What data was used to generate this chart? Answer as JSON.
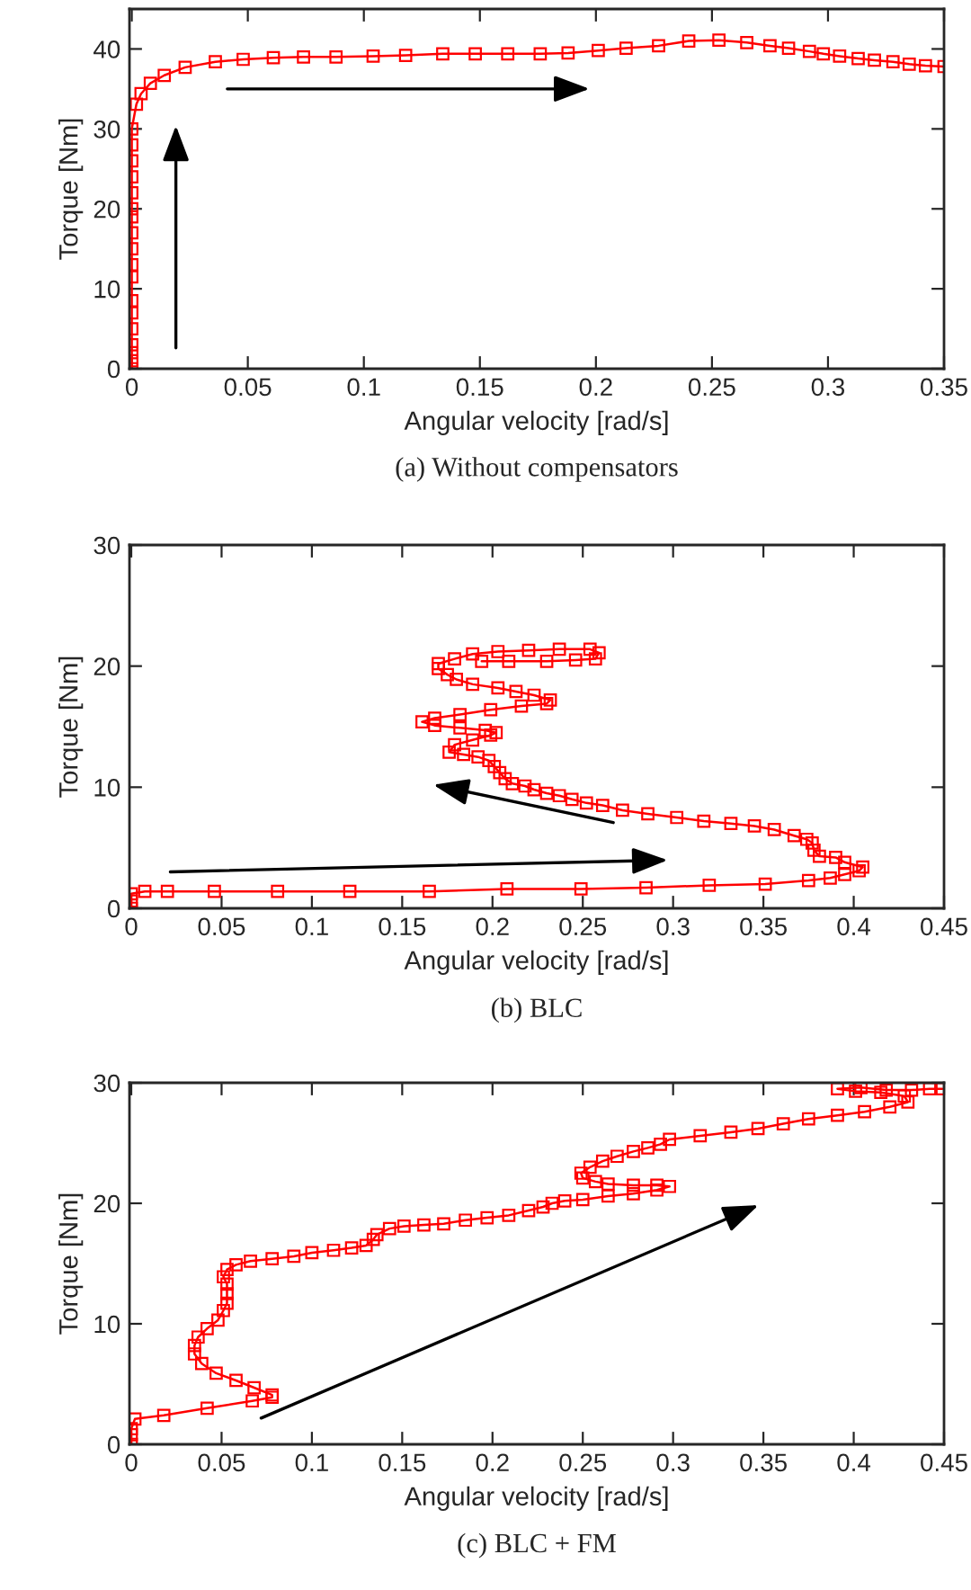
{
  "chart_data": [
    {
      "type": "line",
      "title": "(a) Without compensators",
      "xlabel": "Angular velocity [rad/s]",
      "ylabel": "Torque [Nm]",
      "xlim": [
        -0.001,
        0.35
      ],
      "ylim": [
        0,
        45
      ],
      "xticks": [
        0,
        0.05,
        0.1,
        0.15,
        0.2,
        0.25,
        0.3,
        0.35
      ],
      "yticks": [
        0,
        10,
        20,
        30,
        40
      ],
      "marker": "square",
      "line_style": "solid",
      "grid": false,
      "legend": false,
      "series": [
        {
          "color": "#ff0000",
          "x": [
            0,
            0,
            0,
            0,
            0,
            0,
            0,
            0,
            0,
            0,
            0,
            0,
            0,
            0,
            0,
            0,
            0,
            0,
            0.002,
            0.004,
            0.008,
            0.014,
            0.023,
            0.036,
            0.048,
            0.061,
            0.074,
            0.088,
            0.104,
            0.118,
            0.134,
            0.148,
            0.162,
            0.176,
            0.188,
            0.201,
            0.213,
            0.227,
            0.24,
            0.253,
            0.265,
            0.275,
            0.283,
            0.292,
            0.298,
            0.305,
            0.313,
            0.32,
            0.328,
            0.335,
            0.342,
            0.35
          ],
          "values": [
            0,
            1,
            2,
            3,
            5,
            7,
            8.5,
            11.5,
            13,
            15,
            17,
            19,
            20,
            22,
            24,
            26,
            28,
            30,
            33.1,
            34.4,
            35.7,
            36.7,
            37.7,
            38.4,
            38.7,
            38.9,
            39.0,
            39.0,
            39.1,
            39.2,
            39.4,
            39.4,
            39.4,
            39.4,
            39.5,
            39.8,
            40.1,
            40.4,
            41.0,
            41.1,
            40.8,
            40.4,
            40.1,
            39.7,
            39.4,
            39.1,
            38.8,
            38.6,
            38.4,
            38.1,
            37.9,
            37.8
          ]
        }
      ]
    },
    {
      "type": "line",
      "title": "(b) BLC",
      "xlabel": "Angular velocity [rad/s]",
      "ylabel": "Torque [Nm]",
      "xlim": [
        -0.001,
        0.45
      ],
      "ylim": [
        0,
        30
      ],
      "xticks": [
        0,
        0.05,
        0.1,
        0.15,
        0.2,
        0.25,
        0.3,
        0.35,
        0.4,
        0.45
      ],
      "yticks": [
        0,
        10,
        20,
        30
      ],
      "marker": "square",
      "line_style": "solid",
      "grid": false,
      "legend": false,
      "series": [
        {
          "color": "#ff0000",
          "x": [
            0,
            0,
            0,
            0.0075,
            0.02,
            0.046,
            0.081,
            0.121,
            0.165,
            0.208,
            0.249,
            0.285,
            0.32,
            0.351,
            0.375,
            0.387,
            0.395,
            0.403,
            0.405,
            0.395,
            0.39,
            0.381,
            0.378,
            0.377,
            0.374,
            0.367,
            0.356,
            0.345,
            0.332,
            0.317,
            0.302,
            0.286,
            0.272,
            0.261,
            0.252,
            0.244,
            0.237,
            0.23,
            0.223,
            0.218,
            0.211,
            0.207,
            0.204,
            0.201,
            0.198,
            0.192,
            0.184,
            0.176,
            0.179,
            0.189,
            0.199,
            0.202,
            0.196,
            0.182,
            0.168,
            0.161,
            0.168,
            0.182,
            0.199,
            0.216,
            0.23,
            0.232,
            0.223,
            0.213,
            0.203,
            0.189,
            0.18,
            0.175,
            0.17,
            0.17,
            0.179,
            0.189,
            0.203,
            0.22,
            0.237,
            0.254,
            0.259,
            0.257,
            0.246,
            0.23,
            0.209,
            0.194
          ],
          "values": [
            0,
            0.6,
            1.2,
            1.4,
            1.4,
            1.4,
            1.4,
            1.4,
            1.4,
            1.6,
            1.6,
            1.7,
            1.9,
            2.0,
            2.3,
            2.5,
            2.8,
            3.1,
            3.4,
            3.8,
            4.2,
            4.3,
            4.8,
            5.4,
            5.7,
            6.0,
            6.5,
            6.8,
            7.0,
            7.2,
            7.5,
            7.8,
            8.1,
            8.5,
            8.7,
            9.0,
            9.3,
            9.5,
            9.8,
            10.1,
            10.3,
            10.7,
            11.2,
            11.7,
            12.2,
            12.5,
            12.7,
            12.9,
            13.5,
            13.9,
            14.3,
            14.5,
            14.7,
            14.9,
            15.1,
            15.4,
            15.7,
            16.0,
            16.4,
            16.7,
            16.9,
            17.2,
            17.6,
            17.9,
            18.2,
            18.5,
            18.9,
            19.3,
            19.8,
            20.2,
            20.6,
            21.0,
            21.2,
            21.3,
            21.4,
            21.4,
            21.1,
            20.6,
            20.5,
            20.4,
            20.4,
            20.4
          ]
        }
      ]
    },
    {
      "type": "line",
      "title": "(c) BLC + FM",
      "xlabel": "Angular velocity [rad/s]",
      "ylabel": "Torque [Nm]",
      "xlim": [
        -0.001,
        0.45
      ],
      "ylim": [
        0,
        30
      ],
      "xticks": [
        0,
        0.05,
        0.1,
        0.15,
        0.2,
        0.25,
        0.3,
        0.35,
        0.4,
        0.45
      ],
      "yticks": [
        0,
        10,
        20,
        30
      ],
      "marker": "square",
      "line_style": "solid",
      "grid": false,
      "legend": false,
      "series": [
        {
          "color": "#ff0000",
          "x": [
            0,
            0,
            0,
            0.002,
            0.018,
            0.042,
            0.067,
            0.078,
            0.078,
            0.068,
            0.058,
            0.047,
            0.039,
            0.035,
            0.035,
            0.037,
            0.042,
            0.048,
            0.051,
            0.053,
            0.053,
            0.053,
            0.051,
            0.053,
            0.058,
            0.066,
            0.078,
            0.09,
            0.1,
            0.112,
            0.122,
            0.13,
            0.134,
            0.136,
            0.143,
            0.151,
            0.162,
            0.173,
            0.185,
            0.197,
            0.209,
            0.22,
            0.228,
            0.233,
            0.24,
            0.25,
            0.264,
            0.278,
            0.291,
            0.298,
            0.291,
            0.278,
            0.264,
            0.257,
            0.25,
            0.249,
            0.254,
            0.261,
            0.269,
            0.278,
            0.286,
            0.293,
            0.298,
            0.315,
            0.332,
            0.347,
            0.361,
            0.375,
            0.391,
            0.406,
            0.42,
            0.43,
            0.428,
            0.415,
            0.401,
            0.391,
            0.404,
            0.418,
            0.432,
            0.442,
            0.449
          ],
          "values": [
            0,
            0.8,
            1.3,
            2.1,
            2.4,
            3.0,
            3.6,
            3.9,
            4.1,
            4.7,
            5.3,
            5.9,
            6.7,
            7.5,
            8.2,
            8.9,
            9.6,
            10.3,
            11.1,
            11.7,
            12.5,
            13.3,
            13.9,
            14.5,
            14.9,
            15.2,
            15.4,
            15.6,
            15.9,
            16.1,
            16.3,
            16.5,
            17.0,
            17.4,
            17.9,
            18.1,
            18.2,
            18.3,
            18.6,
            18.8,
            19.0,
            19.4,
            19.7,
            20.0,
            20.2,
            20.3,
            20.6,
            20.8,
            21.1,
            21.4,
            21.5,
            21.5,
            21.6,
            21.8,
            22.1,
            22.5,
            23.0,
            23.5,
            23.9,
            24.3,
            24.6,
            24.9,
            25.3,
            25.6,
            25.9,
            26.2,
            26.6,
            27.0,
            27.3,
            27.6,
            28.0,
            28.4,
            28.9,
            29.2,
            29.3,
            29.5,
            29.6,
            29.4,
            29.4,
            29.5,
            29.5
          ]
        }
      ]
    }
  ]
}
